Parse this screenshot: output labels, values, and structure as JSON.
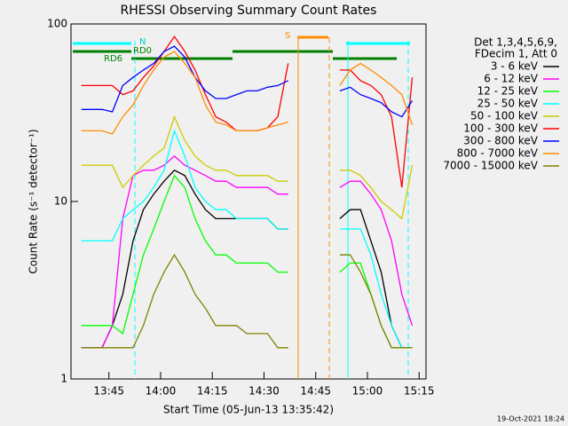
{
  "chart_data": {
    "type": "line",
    "title": "RHESSI Observing Summary Count Rates",
    "xlabel": "Start Time (05-Jun-13 13:35:42)",
    "ylabel": "Count Rate (s⁻¹ detector⁻¹)",
    "legend_header": [
      "Det 1,3,4,5,6,9,",
      "FDecim 1, Att 0"
    ],
    "footer": "19-Oct-2021 18:24",
    "annotations": {
      "n": "N",
      "rd0": "RD0",
      "rd6": "RD6",
      "s": "S"
    },
    "log_y": true,
    "legend": "right",
    "xlim": [
      "13:34",
      "15:17"
    ],
    "xticks": [
      "13:45",
      "14:00",
      "14:15",
      "14:30",
      "14:45",
      "15:00",
      "15:15"
    ],
    "ylim": [
      1,
      100
    ],
    "yticks": [
      1,
      10,
      100
    ],
    "x": [
      "13:37",
      "13:40",
      "13:43",
      "13:46",
      "13:49",
      "13:52",
      "13:55",
      "13:58",
      "14:01",
      "14:04",
      "14:07",
      "14:10",
      "14:13",
      "14:16",
      "14:19",
      "14:22",
      "14:25",
      "14:28",
      "14:31",
      "14:34",
      "14:37",
      "14:40",
      "14:43",
      "14:46",
      "14:49",
      "14:52",
      "14:55",
      "14:58",
      "15:01",
      "15:04",
      "15:07",
      "15:10",
      "15:13"
    ],
    "series": [
      {
        "name": "3 - 6 keV",
        "color": "#000000",
        "values": [
          1.5,
          1.5,
          1.5,
          2,
          3,
          6,
          9,
          11,
          13,
          15,
          14,
          11,
          9,
          8,
          8,
          8,
          8,
          8,
          8,
          7,
          7,
          null,
          null,
          null,
          null,
          8,
          9,
          9,
          6,
          4,
          2,
          1.5,
          1.5
        ]
      },
      {
        "name": "6 - 12 keV",
        "color": "#ff00ff",
        "values": [
          1.5,
          1.5,
          1.5,
          2,
          8,
          14,
          15,
          15,
          16,
          18,
          16,
          15,
          14,
          13,
          13,
          12,
          12,
          12,
          12,
          11,
          11,
          null,
          null,
          null,
          null,
          12,
          13,
          13,
          11,
          9,
          6,
          3,
          2
        ]
      },
      {
        "name": "12 - 25 keV",
        "color": "#00ff00",
        "values": [
          2,
          2,
          2,
          2,
          1.8,
          3,
          5,
          7,
          10,
          14,
          12,
          8,
          6,
          5,
          5,
          4.5,
          4.5,
          4.5,
          4.5,
          4,
          4,
          null,
          null,
          null,
          null,
          4,
          4.5,
          4.5,
          3,
          2,
          1.5,
          1.5,
          1.5
        ]
      },
      {
        "name": "25 - 50 keV",
        "color": "#00ffff",
        "values": [
          6,
          6,
          6,
          6,
          8,
          9,
          10,
          12,
          15,
          25,
          18,
          12,
          10,
          9,
          9,
          8,
          8,
          8,
          8,
          7,
          7,
          null,
          null,
          null,
          null,
          7,
          7,
          7,
          5,
          3,
          2,
          1.5,
          1.5
        ]
      },
      {
        "name": "50 - 100 keV",
        "color": "#cccc00",
        "values": [
          16,
          16,
          16,
          16,
          12,
          14,
          16,
          18,
          20,
          30,
          22,
          18,
          16,
          15,
          15,
          14,
          14,
          14,
          14,
          13,
          13,
          null,
          null,
          null,
          null,
          15,
          15,
          14,
          12,
          10,
          9,
          8,
          16
        ]
      },
      {
        "name": "100 - 300 keV",
        "color": "#ff0000",
        "values": [
          45,
          45,
          45,
          45,
          40,
          42,
          50,
          58,
          70,
          85,
          70,
          55,
          40,
          30,
          28,
          25,
          25,
          25,
          26,
          30,
          60,
          null,
          null,
          null,
          null,
          55,
          55,
          48,
          45,
          40,
          30,
          12,
          50
        ]
      },
      {
        "name": "300 - 800 keV",
        "color": "#0000ff",
        "values": [
          33,
          33,
          33,
          32,
          45,
          50,
          55,
          60,
          70,
          75,
          65,
          50,
          42,
          38,
          38,
          40,
          42,
          42,
          44,
          45,
          48,
          null,
          null,
          null,
          null,
          42,
          44,
          40,
          38,
          36,
          32,
          30,
          37
        ]
      },
      {
        "name": "800 - 7000 keV",
        "color": "#ff8c00",
        "values": [
          25,
          25,
          25,
          24,
          30,
          35,
          45,
          55,
          65,
          70,
          60,
          50,
          35,
          28,
          27,
          25,
          25,
          25,
          26,
          27,
          28,
          null,
          null,
          null,
          null,
          45,
          55,
          60,
          55,
          50,
          45,
          40,
          27
        ]
      },
      {
        "name": "7000 - 15000 keV",
        "color": "#808000",
        "values": [
          1.5,
          1.5,
          1.5,
          1.5,
          1.5,
          1.5,
          2,
          3,
          4,
          5,
          4,
          3,
          2.5,
          2,
          2,
          2,
          1.8,
          1.8,
          1.8,
          1.5,
          1.5,
          null,
          null,
          null,
          null,
          5,
          5,
          4,
          3,
          2,
          1.5,
          1.5,
          1.5
        ]
      }
    ]
  }
}
